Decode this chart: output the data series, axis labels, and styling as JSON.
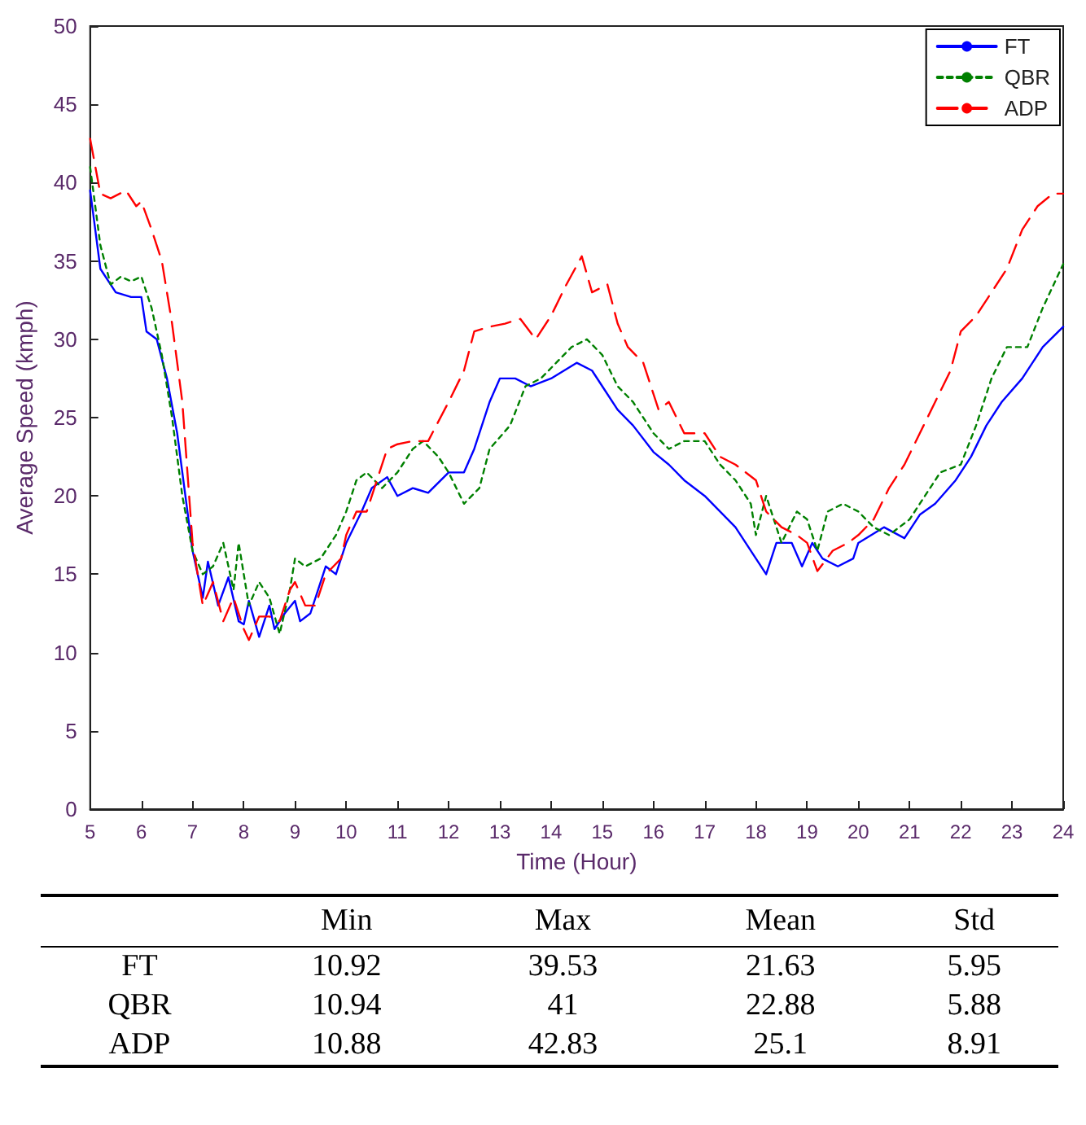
{
  "chart_data": [
    {
      "type": "line",
      "xlabel": "Time (Hour)",
      "ylabel": "Average Speed (kmph)",
      "xlim": [
        5,
        24
      ],
      "xticks": [
        5,
        6,
        7,
        8,
        9,
        10,
        11,
        12,
        13,
        14,
        15,
        16,
        17,
        18,
        19,
        20,
        21,
        22,
        23,
        24
      ],
      "ylim": [
        0,
        50
      ],
      "yticks": [
        0,
        5,
        10,
        15,
        20,
        25,
        30,
        35,
        40,
        45,
        50
      ],
      "grid": false,
      "legend": "top right",
      "marker": "none",
      "series": [
        {
          "name": "FT",
          "color": "#0000ff",
          "line_style": "solid",
          "x": [
            5.0,
            5.1,
            5.2,
            5.5,
            5.8,
            6.0,
            6.1,
            6.3,
            6.5,
            6.7,
            6.9,
            7.0,
            7.2,
            7.3,
            7.5,
            7.7,
            7.9,
            8.0,
            8.1,
            8.3,
            8.5,
            8.6,
            8.8,
            9.0,
            9.1,
            9.3,
            9.6,
            9.8,
            10.0,
            10.3,
            10.5,
            10.8,
            11.0,
            11.3,
            11.6,
            12.0,
            12.3,
            12.5,
            12.8,
            13.0,
            13.3,
            13.6,
            14.0,
            14.5,
            14.8,
            15.0,
            15.3,
            15.6,
            16.0,
            16.3,
            16.6,
            17.0,
            17.3,
            17.6,
            18.0,
            18.2,
            18.4,
            18.7,
            18.9,
            19.1,
            19.3,
            19.6,
            19.9,
            20.0,
            20.5,
            20.9,
            21.2,
            21.5,
            21.9,
            22.2,
            22.5,
            22.8,
            23.2,
            23.6,
            24.0
          ],
          "values": [
            39.5,
            37,
            34.5,
            33,
            32.7,
            32.7,
            30.5,
            30,
            27.5,
            24,
            19,
            16.5,
            13.5,
            15.8,
            13,
            14.8,
            12,
            11.8,
            13.3,
            11,
            13,
            11.5,
            12.5,
            13.3,
            12,
            12.5,
            15.5,
            15,
            17,
            19,
            20.5,
            21.2,
            20,
            20.5,
            20.2,
            21.5,
            21.5,
            23,
            26,
            27.5,
            27.5,
            27,
            27.5,
            28.5,
            28,
            27,
            25.5,
            24.5,
            22.8,
            22,
            21,
            20,
            19,
            18,
            16,
            15,
            17,
            17,
            15.5,
            17,
            16,
            15.5,
            16,
            17,
            18,
            17.3,
            18.8,
            19.5,
            21,
            22.5,
            24.5,
            26,
            27.5,
            29.5,
            30.8
          ]
        },
        {
          "name": "QBR",
          "color": "#008000",
          "line_style": "dotted",
          "x": [
            5.0,
            5.2,
            5.4,
            5.6,
            5.8,
            6.0,
            6.2,
            6.4,
            6.6,
            6.8,
            7.0,
            7.2,
            7.4,
            7.6,
            7.8,
            7.9,
            8.1,
            8.3,
            8.5,
            8.7,
            8.9,
            9.0,
            9.2,
            9.5,
            9.8,
            10.0,
            10.2,
            10.4,
            10.7,
            11.0,
            11.3,
            11.5,
            11.8,
            12.0,
            12.3,
            12.6,
            12.8,
            13.2,
            13.5,
            13.8,
            14.1,
            14.4,
            14.7,
            15.0,
            15.3,
            15.6,
            16.0,
            16.3,
            16.6,
            17.0,
            17.3,
            17.6,
            17.9,
            18.0,
            18.2,
            18.5,
            18.8,
            19.0,
            19.2,
            19.4,
            19.7,
            20.0,
            20.3,
            20.6,
            21.0,
            21.3,
            21.6,
            22.0,
            22.3,
            22.6,
            22.9,
            23.3,
            23.6,
            24.0
          ],
          "values": [
            41,
            36,
            33.5,
            34,
            33.7,
            34,
            32,
            29,
            25,
            20,
            16.5,
            15,
            15.5,
            17,
            14,
            17,
            13,
            14.5,
            13.5,
            11.2,
            14,
            16,
            15.5,
            16,
            17.5,
            19,
            21,
            21.5,
            20.5,
            21.5,
            23,
            23.5,
            22.5,
            21.5,
            19.5,
            20.5,
            23,
            24.5,
            27,
            27.5,
            28.5,
            29.5,
            30,
            29,
            27,
            26,
            24,
            23,
            23.5,
            23.5,
            22,
            21,
            19.5,
            17.5,
            20,
            17,
            19,
            18.5,
            16.5,
            19,
            19.5,
            19,
            18,
            17.5,
            18.5,
            20,
            21.5,
            22,
            24.5,
            27.5,
            29.5,
            29.5,
            32,
            34.8
          ]
        },
        {
          "name": "ADP",
          "color": "#ff0000",
          "line_style": "dashed",
          "x": [
            5.0,
            5.2,
            5.4,
            5.7,
            5.9,
            6.0,
            6.2,
            6.4,
            6.6,
            6.8,
            7.0,
            7.2,
            7.4,
            7.6,
            7.8,
            8.0,
            8.1,
            8.3,
            8.5,
            8.7,
            8.9,
            9.0,
            9.2,
            9.4,
            9.6,
            9.9,
            10.0,
            10.2,
            10.4,
            10.6,
            10.8,
            11.0,
            11.3,
            11.6,
            12.0,
            12.3,
            12.5,
            12.8,
            13.1,
            13.4,
            13.7,
            14.0,
            14.3,
            14.6,
            14.8,
            15.1,
            15.3,
            15.5,
            15.8,
            16.1,
            16.3,
            16.6,
            17.0,
            17.3,
            17.6,
            18.0,
            18.2,
            18.5,
            18.8,
            19.0,
            19.2,
            19.5,
            19.8,
            20.0,
            20.3,
            20.6,
            20.9,
            21.2,
            21.5,
            21.8,
            22.0,
            22.3,
            22.6,
            22.9,
            23.2,
            23.5,
            23.8,
            24.0
          ],
          "values": [
            42.8,
            39.3,
            39,
            39.5,
            38.5,
            38.8,
            37,
            35,
            31,
            26,
            17,
            13,
            14.5,
            12,
            13.5,
            11.5,
            10.8,
            12.3,
            12.3,
            12,
            14,
            14.5,
            13,
            13,
            15,
            16,
            17.5,
            19,
            19,
            21,
            23,
            23.3,
            23.5,
            23.5,
            26,
            28,
            30.5,
            30.8,
            31,
            31.3,
            30,
            31.5,
            33.5,
            35.3,
            33,
            33.5,
            31,
            29.5,
            28.5,
            25.5,
            26,
            24,
            24,
            22.5,
            22,
            21,
            19,
            18,
            17.5,
            17,
            15.2,
            16.5,
            17,
            17.5,
            18.5,
            20.5,
            22,
            24,
            26,
            28,
            30.5,
            31.5,
            33,
            34.5,
            37,
            38.5,
            39.3,
            39.3
          ]
        }
      ]
    },
    {
      "type": "other",
      "categories": [
        "Min",
        "Max",
        "Mean",
        "Std"
      ],
      "data_labels": true,
      "series": [
        {
          "name": "FT",
          "values": [
            10.92,
            39.53,
            21.63,
            5.95
          ]
        },
        {
          "name": "QBR",
          "values": [
            10.94,
            41,
            22.88,
            5.88
          ]
        },
        {
          "name": "ADP",
          "values": [
            10.88,
            42.83,
            25.1,
            8.91
          ]
        }
      ]
    }
  ]
}
